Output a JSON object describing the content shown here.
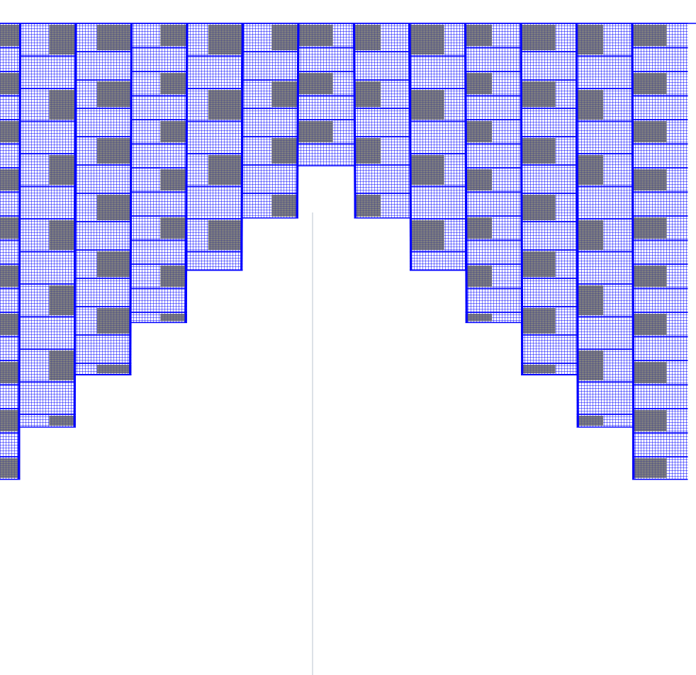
{
  "diagram": {
    "grid_color": "#0000ff",
    "dense_fill_color": "#7f7f7f",
    "background_color": "#ffffff",
    "centerline_color": "#b9c3cf",
    "columns": [
      {
        "id": "col-1",
        "depth_level": 9
      },
      {
        "id": "col-2",
        "depth_level": 8
      },
      {
        "id": "col-3",
        "depth_level": 7
      },
      {
        "id": "col-4",
        "depth_level": 6
      },
      {
        "id": "col-5",
        "depth_level": 5
      },
      {
        "id": "col-6",
        "depth_level": 4
      },
      {
        "id": "col-7",
        "depth_level": 3
      },
      {
        "id": "col-8",
        "depth_level": 4
      },
      {
        "id": "col-9",
        "depth_level": 5
      },
      {
        "id": "col-10",
        "depth_level": 6
      },
      {
        "id": "col-11",
        "depth_level": 7
      },
      {
        "id": "col-12",
        "depth_level": 8
      },
      {
        "id": "col-13",
        "depth_level": 9
      }
    ]
  }
}
